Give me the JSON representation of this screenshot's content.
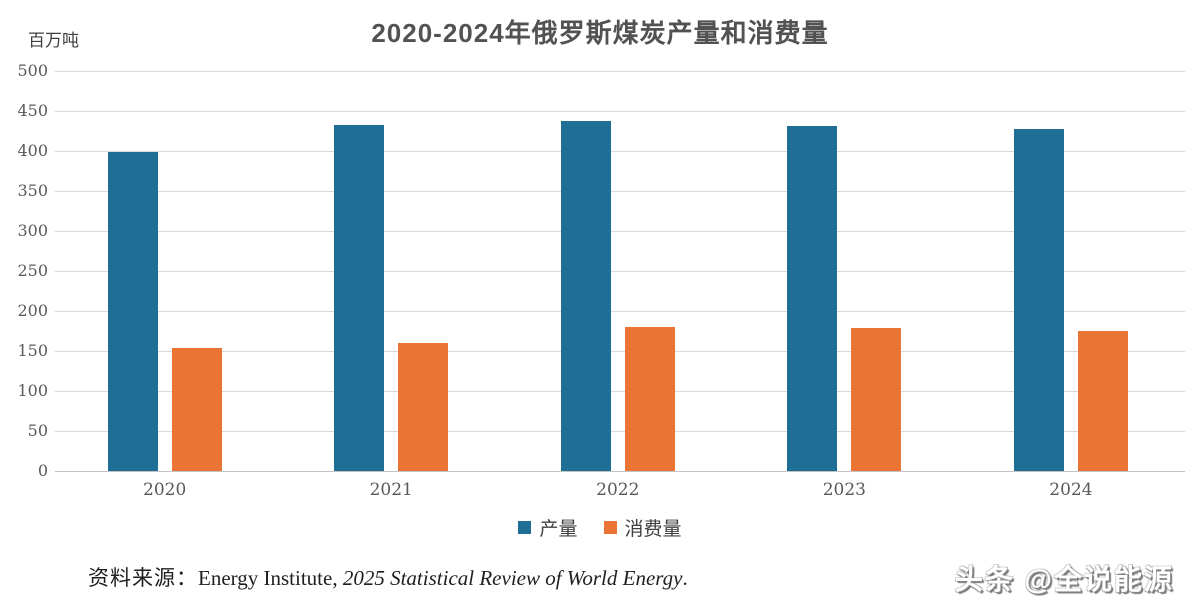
{
  "title": "2020-2024年俄罗斯煤炭产量和消费量",
  "unit_label": "百万吨",
  "chart_data": {
    "type": "bar",
    "title": "2020-2024年俄罗斯煤炭产量和消费量",
    "ylabel": "百万吨",
    "xlabel": "",
    "categories": [
      "2020",
      "2021",
      "2022",
      "2023",
      "2024"
    ],
    "series": [
      {
        "name": "产量",
        "color": "#1f6e96",
        "values": [
          399,
          433,
          437,
          431,
          427
        ]
      },
      {
        "name": "消费量",
        "color": "#ea7434",
        "values": [
          154,
          160,
          180,
          179,
          175
        ]
      }
    ],
    "ylim": [
      0,
      500
    ],
    "yticks": [
      0,
      50,
      100,
      150,
      200,
      250,
      300,
      350,
      400,
      450,
      500
    ],
    "grid": true,
    "legend_position": "bottom"
  },
  "legend": {
    "items": [
      {
        "label": "产量",
        "color": "#1f6e96"
      },
      {
        "label": "消费量",
        "color": "#ea7434"
      }
    ]
  },
  "source": {
    "prefix": "资料来源：",
    "publisher": "Energy Institute, ",
    "report_italic": "2025 Statistical Review of World Energy",
    "suffix": "."
  },
  "watermark": "头条 @全说能源",
  "colors": {
    "production_bar": "#1f6e96",
    "consumption_bar": "#ea7434",
    "gridline": "#d9d9d9",
    "axis_text": "#595959",
    "title_text": "#525252"
  }
}
